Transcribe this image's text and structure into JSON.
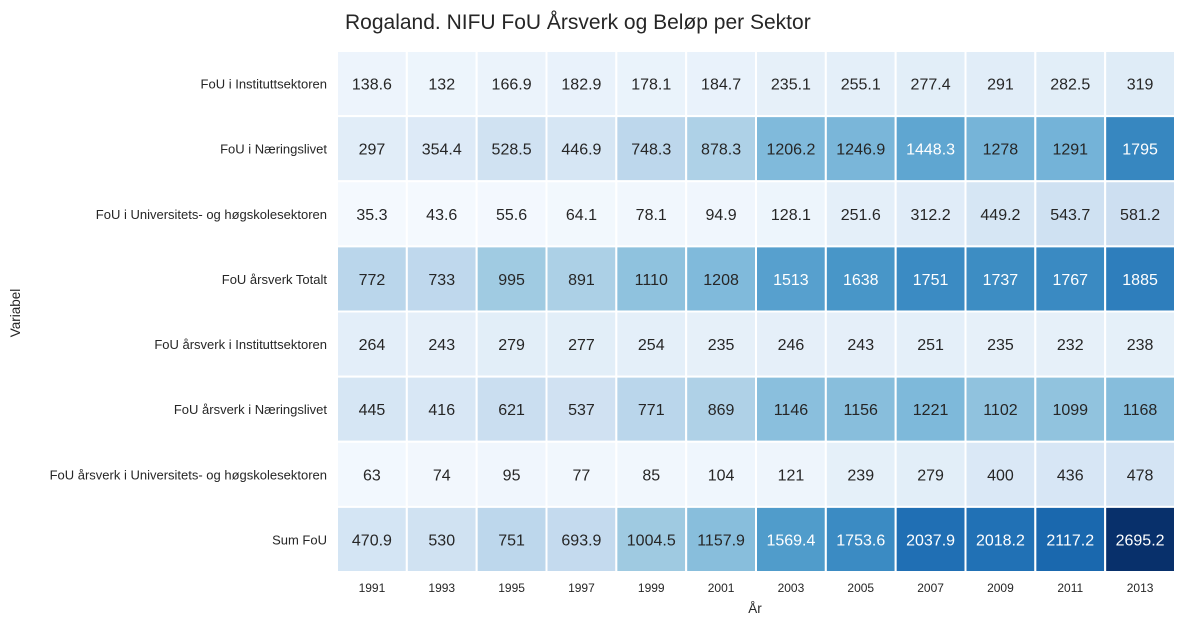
{
  "chart_data": {
    "type": "heatmap",
    "title": "Rogaland. NIFU FoU Årsverk og Beløp per Sektor",
    "xlabel": "År",
    "ylabel": "Variabel",
    "x": [
      "1991",
      "1993",
      "1995",
      "1997",
      "1999",
      "2001",
      "2003",
      "2005",
      "2007",
      "2009",
      "2011",
      "2013"
    ],
    "y": [
      "FoU i Instituttsektoren",
      "FoU i Næringslivet",
      "FoU i Universitets- og høgskolesektoren",
      "FoU årsverk Totalt",
      "FoU årsverk i Instituttsektoren",
      "FoU årsverk i Næringslivet",
      "FoU årsverk i Universitets- og høgskolesektoren",
      "Sum FoU"
    ],
    "values": [
      [
        "138.6",
        "132",
        "166.9",
        "182.9",
        "178.1",
        "184.7",
        "235.1",
        "255.1",
        "277.4",
        "291",
        "282.5",
        "319"
      ],
      [
        "297",
        "354.4",
        "528.5",
        "446.9",
        "748.3",
        "878.3",
        "1206.2",
        "1246.9",
        "1448.3",
        "1278",
        "1291",
        "1795"
      ],
      [
        "35.3",
        "43.6",
        "55.6",
        "64.1",
        "78.1",
        "94.9",
        "128.1",
        "251.6",
        "312.2",
        "449.2",
        "543.7",
        "581.2"
      ],
      [
        "772",
        "733",
        "995",
        "891",
        "1110",
        "1208",
        "1513",
        "1638",
        "1751",
        "1737",
        "1767",
        "1885"
      ],
      [
        "264",
        "243",
        "279",
        "277",
        "254",
        "235",
        "246",
        "243",
        "251",
        "235",
        "232",
        "238"
      ],
      [
        "445",
        "416",
        "621",
        "537",
        "771",
        "869",
        "1146",
        "1156",
        "1221",
        "1102",
        "1099",
        "1168"
      ],
      [
        "63",
        "74",
        "95",
        "77",
        "85",
        "104",
        "121",
        "239",
        "279",
        "400",
        "436",
        "478"
      ],
      [
        "470.9",
        "530",
        "751",
        "693.9",
        "1004.5",
        "1157.9",
        "1569.4",
        "1753.6",
        "2037.9",
        "2018.2",
        "2117.2",
        "2695.2"
      ]
    ],
    "colormap": "Blues",
    "color_range": [
      0,
      2695.2
    ],
    "colorbar": false
  }
}
